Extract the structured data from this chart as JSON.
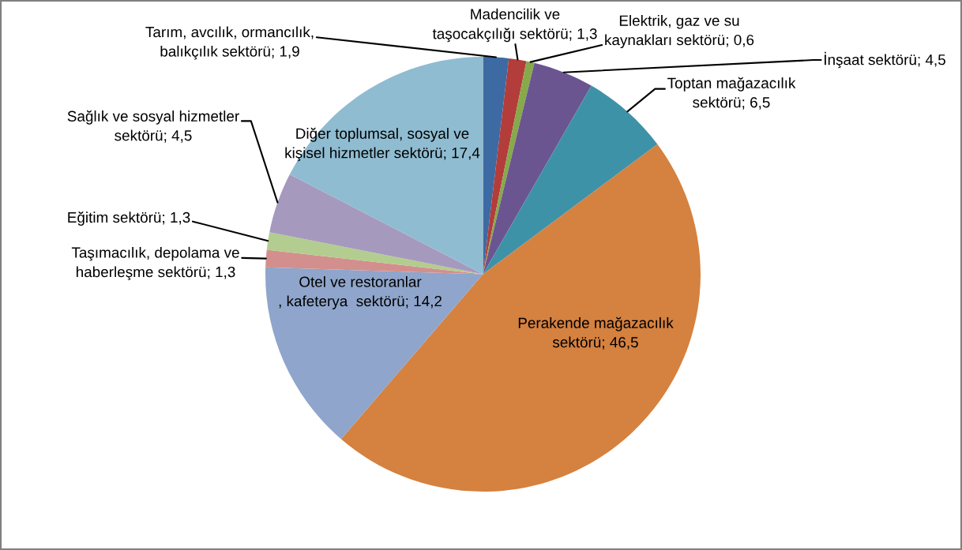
{
  "chart_data": {
    "type": "pie",
    "categories": [
      "Tarım, avcılık, ormancılık,\nbalıkçılık sektörü",
      "Madencilik ve\ntaşocakçılığı sektörü",
      "Elektrik, gaz ve su\nkaynakları sektörü",
      "İnşaat sektörü",
      "Toptan mağazacılık\nsektörü",
      "Perakende mağazacılık\nsektörü",
      "Otel ve restoranlar\n, kafeterya  sektörü",
      "Taşımacılık, depolama ve\nhaberleşme sektörü",
      "Eğitim sektörü",
      "Sağlık ve sosyal hizmetler\nsektörü",
      "Diğer toplumsal, sosyal ve\nkişisel hizmetler sektörü"
    ],
    "values": [
      1.9,
      1.3,
      0.6,
      4.5,
      6.5,
      46.5,
      14.2,
      1.3,
      1.3,
      4.5,
      17.4
    ],
    "value_labels": [
      "1,9",
      "1,3",
      "0,6",
      "4,5",
      "6,5",
      "46,5",
      "14,2",
      "1,3",
      "1,3",
      "4,5",
      "17,4"
    ],
    "colors": [
      "#3d6aa3",
      "#b23d3b",
      "#86aa4a",
      "#6b5590",
      "#3e92a8",
      "#d5813f",
      "#8fa5cb",
      "#d38f8d",
      "#b2cd8f",
      "#a699be",
      "#8fbcd1"
    ]
  }
}
